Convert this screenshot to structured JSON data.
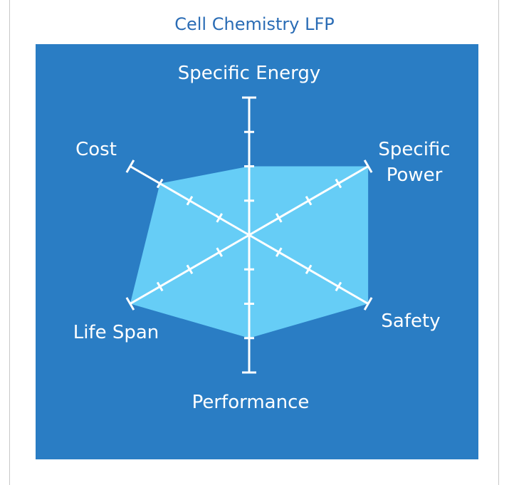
{
  "chart_data": {
    "type": "radar",
    "title": "Cell Chemistry LFP",
    "categories": [
      "Specific Energy",
      "Specific Power",
      "Safety",
      "Performance",
      "Life Span",
      "Cost"
    ],
    "values": [
      2,
      4,
      4,
      3,
      4,
      3
    ],
    "rlim": [
      0,
      4
    ],
    "rticks": [
      1,
      2,
      3,
      4
    ],
    "color": "#66cdf6",
    "background": "#2a7dc4"
  }
}
